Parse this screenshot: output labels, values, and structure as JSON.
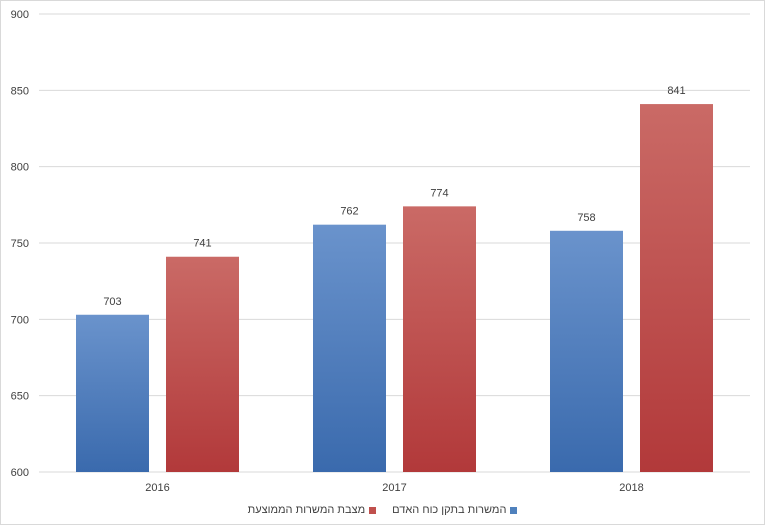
{
  "chart_data": {
    "type": "bar",
    "categories": [
      "2016",
      "2017",
      "2018"
    ],
    "series": [
      {
        "name": "המשרות בתקן כוח האדם",
        "values": [
          703,
          762,
          758
        ],
        "color": "#4f81bd"
      },
      {
        "name": "מצבת המשרות הממוצעת",
        "values": [
          741,
          774,
          841
        ],
        "color": "#c0504d"
      }
    ],
    "yticks": [
      "600",
      "650",
      "700",
      "750",
      "800",
      "850",
      "900"
    ],
    "ylim": [
      600,
      900
    ],
    "grid": true,
    "legend_position": "bottom",
    "title": "",
    "xlabel": "",
    "ylabel": ""
  },
  "legend": {
    "items": [
      {
        "label": "המשרות בתקן כוח האדם",
        "color": "#4f81bd"
      },
      {
        "label": "מצבת המשרות הממוצעת",
        "color": "#c0504d"
      }
    ]
  }
}
